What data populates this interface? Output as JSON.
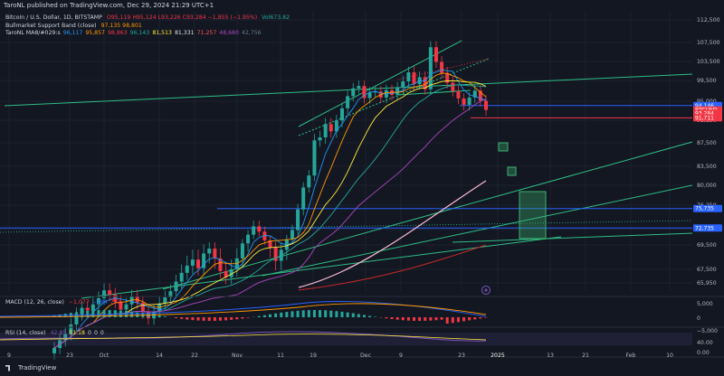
{
  "header": {
    "published": "TaroNL published on TradingView.com, Dec 29, 2024 21:29 UTC+1"
  },
  "legend": {
    "symbol": "Bitcoin / U.S. Dollar, 1D, BITSTAMP",
    "ohlc": "O95,119 H95,124 L93,226 C93,284 −1,855 (−1.95%)",
    "vol": "Vol673.82",
    "bsb_label": "Bullmarket Support Band (close)",
    "bsb_values": "97,135  98,801",
    "ma_label": "TaroNL MA8/#029:s",
    "ma_values": [
      "96,117",
      "95,857",
      "98,863",
      "96,143",
      "81,513",
      "81,331",
      "71,257",
      "48,680",
      "42,756"
    ]
  },
  "colors": {
    "bg": "#131722",
    "up": "#26a69a",
    "down": "#f23645",
    "grid": "#1e222d",
    "trend": "#2ebd85",
    "zone": "#3cb371"
  },
  "chart_data": {
    "type": "candlestick",
    "title": "Bitcoin / U.S. Dollar, 1D, BITSTAMP",
    "y_ticks": [
      "112,500",
      "107,500",
      "103,500",
      "99,500",
      "95,000",
      "91,250",
      "87,500",
      "83,500",
      "80,000",
      "76,250",
      "72,500",
      "69,500",
      "67,500",
      "65,950"
    ],
    "x_ticks": [
      "9",
      "23",
      "Oct",
      "14",
      "22",
      "Nov",
      "11",
      "19",
      "Dec",
      "9",
      "23",
      "2025",
      "13",
      "21",
      "Feb",
      "10"
    ],
    "ylim": [
      64000,
      114000
    ],
    "price_labels": [
      {
        "text": "94,146",
        "price": 94146,
        "color": "#2962ff"
      },
      {
        "text": "BTCUSD",
        "price": 93284,
        "color": "#f23645"
      },
      {
        "text": "93,284",
        "price": 92600,
        "color": "#f23645"
      },
      {
        "text": "91,711",
        "price": 91711,
        "color": "#f23645"
      },
      {
        "text": "75,735",
        "price": 75735,
        "color": "#2962ff"
      },
      {
        "text": "72,735",
        "price": 72735,
        "color": "#2962ff"
      }
    ],
    "candles_closes": [
      58500,
      59400,
      60100,
      61200,
      62400,
      63100,
      62800,
      63500,
      64200,
      65100,
      64600,
      63800,
      62900,
      63500,
      64400,
      63700,
      62600,
      61900,
      62700,
      63600,
      64300,
      65000,
      66100,
      67100,
      67800,
      68300,
      67600,
      68800,
      69200,
      68400,
      67300,
      66600,
      67500,
      68400,
      69800,
      71500,
      73000,
      72100,
      70400,
      69300,
      68200,
      69100,
      70600,
      72400,
      75600,
      79600,
      81800,
      87900,
      88400,
      90600,
      89400,
      91200,
      93600,
      96100,
      97800,
      98300,
      95700,
      96900,
      97100,
      95800,
      97400,
      96400,
      98000,
      99300,
      101200,
      98700,
      100200,
      97600,
      106500,
      103400,
      101100,
      99000,
      97200,
      95600,
      94300,
      95800,
      97300,
      95100,
      93284
    ],
    "macd": {
      "label": "MACD (12, 26, close)",
      "values": [
        "−1,077",
        "−284",
        "792"
      ],
      "y_ticks": [
        "5,000",
        "0",
        "−5,000"
      ]
    },
    "rsi": {
      "label": "RSI (14, close)",
      "values": [
        "42.85",
        "51.18",
        "0",
        "0",
        "0"
      ],
      "y_ticks": [
        "40.00",
        "0.00"
      ]
    }
  },
  "footer": {
    "brand": "TradingView"
  }
}
